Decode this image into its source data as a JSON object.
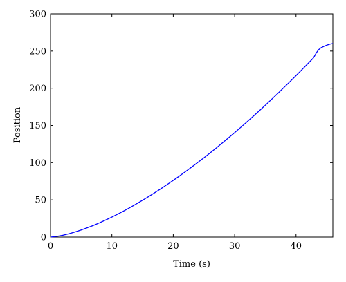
{
  "chart_data": {
    "type": "line",
    "title": "",
    "xlabel": "Time (s)",
    "ylabel": "Position",
    "xlim": [
      0,
      46
    ],
    "ylim": [
      0,
      300
    ],
    "xticks": [
      0,
      10,
      20,
      30,
      40
    ],
    "yticks": [
      0,
      50,
      100,
      150,
      200,
      250,
      300
    ],
    "grid": false,
    "legend": "none",
    "series": [
      {
        "color": "#0000ff",
        "x": [
          0,
          1,
          2,
          3,
          4,
          5,
          6,
          7,
          8,
          9,
          10,
          11,
          12,
          13,
          14,
          15,
          16,
          17,
          18,
          19,
          20,
          21,
          22,
          23,
          24,
          25,
          26,
          27,
          28,
          29,
          30,
          31,
          32,
          33,
          34,
          35,
          36,
          37,
          38,
          39,
          40,
          41,
          42,
          42.8,
          43.0,
          43.3,
          43.7,
          44.1,
          44.6,
          45.1,
          45.6,
          46.0
        ],
        "y": [
          0,
          0.9,
          2.4,
          4.4,
          6.8,
          9.5,
          12.5,
          15.7,
          19.2,
          23.0,
          26.9,
          31.1,
          35.4,
          39.9,
          44.6,
          49.5,
          54.5,
          59.7,
          65.1,
          70.6,
          76.2,
          82.0,
          88.0,
          94.1,
          100.3,
          106.6,
          113.1,
          119.7,
          126.5,
          133.4,
          140.4,
          147.5,
          154.8,
          162.2,
          169.6,
          177.2,
          185.0,
          192.8,
          200.8,
          208.8,
          217.0,
          225.3,
          233.7,
          240.5,
          243.0,
          247.5,
          252.0,
          254.6,
          256.6,
          258.2,
          259.5,
          260.0
        ]
      }
    ]
  }
}
